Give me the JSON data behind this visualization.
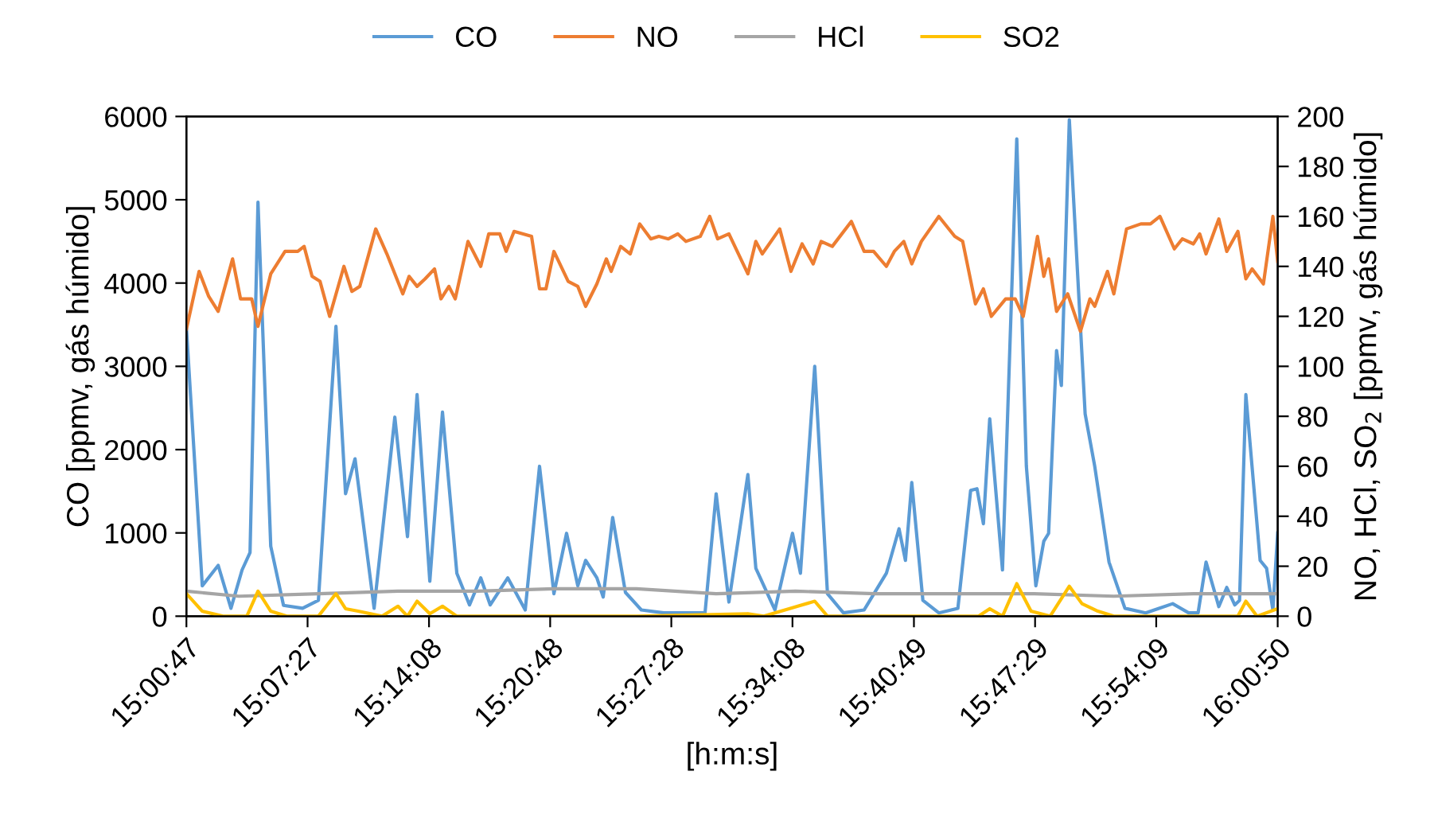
{
  "chart_data": {
    "type": "line",
    "xlabel": "[h:m:s]",
    "ylabel": "CO [ppmv, gás húmido]",
    "y2label": "NO, HCl, SO$_{2}$ [ppmv, gás húmido]",
    "xlim": [
      15.01306,
      16.0139
    ],
    "xticks": [
      {
        "value": 15.01306,
        "label": "15:00:47"
      },
      {
        "value": 15.12417,
        "label": "15:07:27"
      },
      {
        "value": 15.23556,
        "label": "15:14:08"
      },
      {
        "value": 15.34667,
        "label": "15:20:48"
      },
      {
        "value": 15.45778,
        "label": "15:27:28"
      },
      {
        "value": 15.56889,
        "label": "15:34:08"
      },
      {
        "value": 15.68028,
        "label": "15:40:49"
      },
      {
        "value": 15.79139,
        "label": "15:47:29"
      },
      {
        "value": 15.9025,
        "label": "15:54:09"
      },
      {
        "value": 16.01389,
        "label": "16:00:50"
      }
    ],
    "ylim": [
      0,
      6000
    ],
    "yticks": [
      0,
      1000,
      2000,
      3000,
      4000,
      5000,
      6000
    ],
    "y2lim": [
      0,
      200
    ],
    "y2ticks": [
      0,
      20,
      40,
      60,
      80,
      100,
      120,
      140,
      160,
      180,
      200
    ],
    "grid": false,
    "legend": "top",
    "marker": "none",
    "line_style": "solid",
    "series": [
      {
        "name": "CO",
        "color": "#5b9bd5",
        "x": [
          15.0131,
          15.0276,
          15.0422,
          15.0539,
          15.0641,
          15.0714,
          15.0787,
          15.0904,
          15.1021,
          15.1196,
          15.1341,
          15.1502,
          15.159,
          15.1677,
          15.1852,
          15.2042,
          15.2158,
          15.2246,
          15.2363,
          15.2479,
          15.2611,
          15.2727,
          15.283,
          15.2917,
          15.3078,
          15.3238,
          15.3369,
          15.3501,
          15.3617,
          15.372,
          15.3792,
          15.3895,
          15.3953,
          15.404,
          15.4157,
          15.4303,
          15.4507,
          15.4887,
          15.4989,
          15.5106,
          15.528,
          15.5353,
          15.5528,
          15.5689,
          15.5762,
          15.5893,
          15.601,
          15.6156,
          15.6346,
          15.655,
          15.6666,
          15.6725,
          15.6783,
          15.6885,
          15.7031,
          15.7206,
          15.7323,
          15.7381,
          15.744,
          15.7498,
          15.7615,
          15.7746,
          15.7834,
          15.7921,
          15.7994,
          15.8038,
          15.8111,
          15.8155,
          15.8228,
          15.8373,
          15.8461,
          15.8592,
          15.8738,
          15.8928,
          15.9176,
          15.9322,
          15.9409,
          15.9482,
          15.9599,
          15.9672,
          15.9745,
          15.9789,
          15.9847,
          15.9978,
          16.0037,
          16.0095,
          16.0139
        ],
        "values": [
          3450,
          365,
          610,
          95,
          555,
          765,
          4970,
          840,
          130,
          95,
          190,
          3480,
          1470,
          1890,
          95,
          2390,
          955,
          2660,
          420,
          2450,
          515,
          135,
          460,
          135,
          460,
          75,
          1800,
          270,
          995,
          365,
          670,
          460,
          230,
          1185,
          285,
          75,
          40,
          40,
          1470,
          170,
          1700,
          575,
          75,
          995,
          515,
          3000,
          270,
          40,
          75,
          515,
          1050,
          670,
          1605,
          190,
          40,
          95,
          1510,
          1530,
          1110,
          2370,
          555,
          5730,
          1800,
          365,
          900,
          995,
          3190,
          2770,
          5960,
          2430,
          1800,
          650,
          95,
          40,
          150,
          40,
          40,
          650,
          115,
          345,
          135,
          190,
          2660,
          670,
          575,
          75,
          1000
        ]
      },
      {
        "name": "NO",
        "color": "#ed7d31",
        "axis": "y2",
        "x": [
          15.0131,
          15.0247,
          15.0335,
          15.0422,
          15.0554,
          15.0627,
          15.0729,
          15.0787,
          15.0904,
          15.1035,
          15.1152,
          15.121,
          15.1283,
          15.1356,
          15.1444,
          15.1575,
          15.1648,
          15.1721,
          15.1867,
          15.1969,
          15.2115,
          15.2173,
          15.2246,
          15.2319,
          15.2406,
          15.2465,
          15.2538,
          15.2596,
          15.2713,
          15.283,
          15.2903,
          15.3005,
          15.3063,
          15.3136,
          15.3296,
          15.3369,
          15.3428,
          15.3501,
          15.3632,
          15.372,
          15.3792,
          15.3895,
          15.3982,
          15.4026,
          15.4113,
          15.4201,
          15.4288,
          15.439,
          15.4463,
          15.4551,
          15.4638,
          15.4711,
          15.4843,
          15.493,
          15.5003,
          15.5106,
          15.528,
          15.5353,
          15.5412,
          15.5572,
          15.5675,
          15.5777,
          15.5879,
          15.5952,
          15.6054,
          15.6229,
          15.6346,
          15.6433,
          15.655,
          15.6623,
          15.671,
          15.6783,
          15.6871,
          15.7031,
          15.7177,
          15.725,
          15.7367,
          15.744,
          15.7513,
          15.7644,
          15.7732,
          15.7805,
          15.7936,
          15.7994,
          15.8038,
          15.8111,
          15.8213,
          15.833,
          15.8417,
          15.8461,
          15.8578,
          15.8636,
          15.8753,
          15.8884,
          15.8972,
          15.9059,
          15.9191,
          15.9264,
          15.9366,
          15.9424,
          15.9482,
          15.9599,
          15.9672,
          15.9774,
          15.9847,
          15.9905,
          16.0008,
          16.0095,
          16.0139
        ],
        "values": [
          115,
          138,
          128,
          122,
          143,
          127,
          127,
          116,
          137,
          146,
          146,
          148,
          136,
          134,
          120,
          140,
          130,
          132,
          155,
          145,
          129,
          136,
          132,
          135,
          139,
          127,
          132,
          127,
          150,
          140,
          153,
          153,
          146,
          154,
          152,
          131,
          131,
          146,
          134,
          132,
          124,
          133,
          143,
          138,
          148,
          145,
          157,
          151,
          152,
          151,
          153,
          150,
          152,
          160,
          151,
          153,
          137,
          150,
          145,
          155,
          138,
          149,
          141,
          150,
          148,
          158,
          146,
          146,
          140,
          146,
          150,
          141,
          150,
          160,
          152,
          150,
          125,
          131,
          120,
          127,
          127,
          120,
          152,
          136,
          143,
          122,
          129,
          114,
          127,
          124,
          138,
          129,
          155,
          157,
          157,
          160,
          147,
          151,
          149,
          153,
          145,
          159,
          146,
          154,
          135,
          139,
          133,
          160,
          142
        ]
      },
      {
        "name": "HCl",
        "color": "#a5a5a5",
        "axis": "y2",
        "x": [
          15.0131,
          15.0612,
          15.1341,
          15.2071,
          15.28,
          15.3501,
          15.4259,
          15.4989,
          15.5718,
          15.6448,
          15.7177,
          15.7906,
          15.8636,
          15.9366,
          16.0139
        ],
        "values": [
          10,
          8,
          9,
          10,
          10,
          11,
          11,
          9,
          10,
          9,
          9,
          9,
          8,
          9,
          9
        ]
      },
      {
        "name": "SO2",
        "color": "#ffc000",
        "axis": "y2",
        "x": [
          15.0131,
          15.0276,
          15.0466,
          15.0685,
          15.0787,
          15.0904,
          15.105,
          15.1341,
          15.1502,
          15.159,
          15.1706,
          15.1925,
          15.2071,
          15.2158,
          15.2246,
          15.2363,
          15.2479,
          15.2611,
          15.4259,
          15.528,
          15.5426,
          15.5893,
          15.601,
          15.7396,
          15.7498,
          15.7615,
          15.7746,
          15.7877,
          15.8052,
          15.8228,
          15.8344,
          15.849,
          15.8636,
          15.9774,
          15.9847,
          15.9949,
          16.0139
        ],
        "values": [
          9,
          2,
          0,
          0,
          10,
          2,
          0,
          0,
          9,
          3,
          2,
          0,
          4,
          0,
          6,
          1,
          4,
          0,
          0,
          1,
          0,
          6,
          0,
          0,
          3,
          0,
          13,
          2,
          0,
          12,
          5,
          2,
          0,
          0,
          6,
          0,
          3
        ]
      }
    ]
  }
}
